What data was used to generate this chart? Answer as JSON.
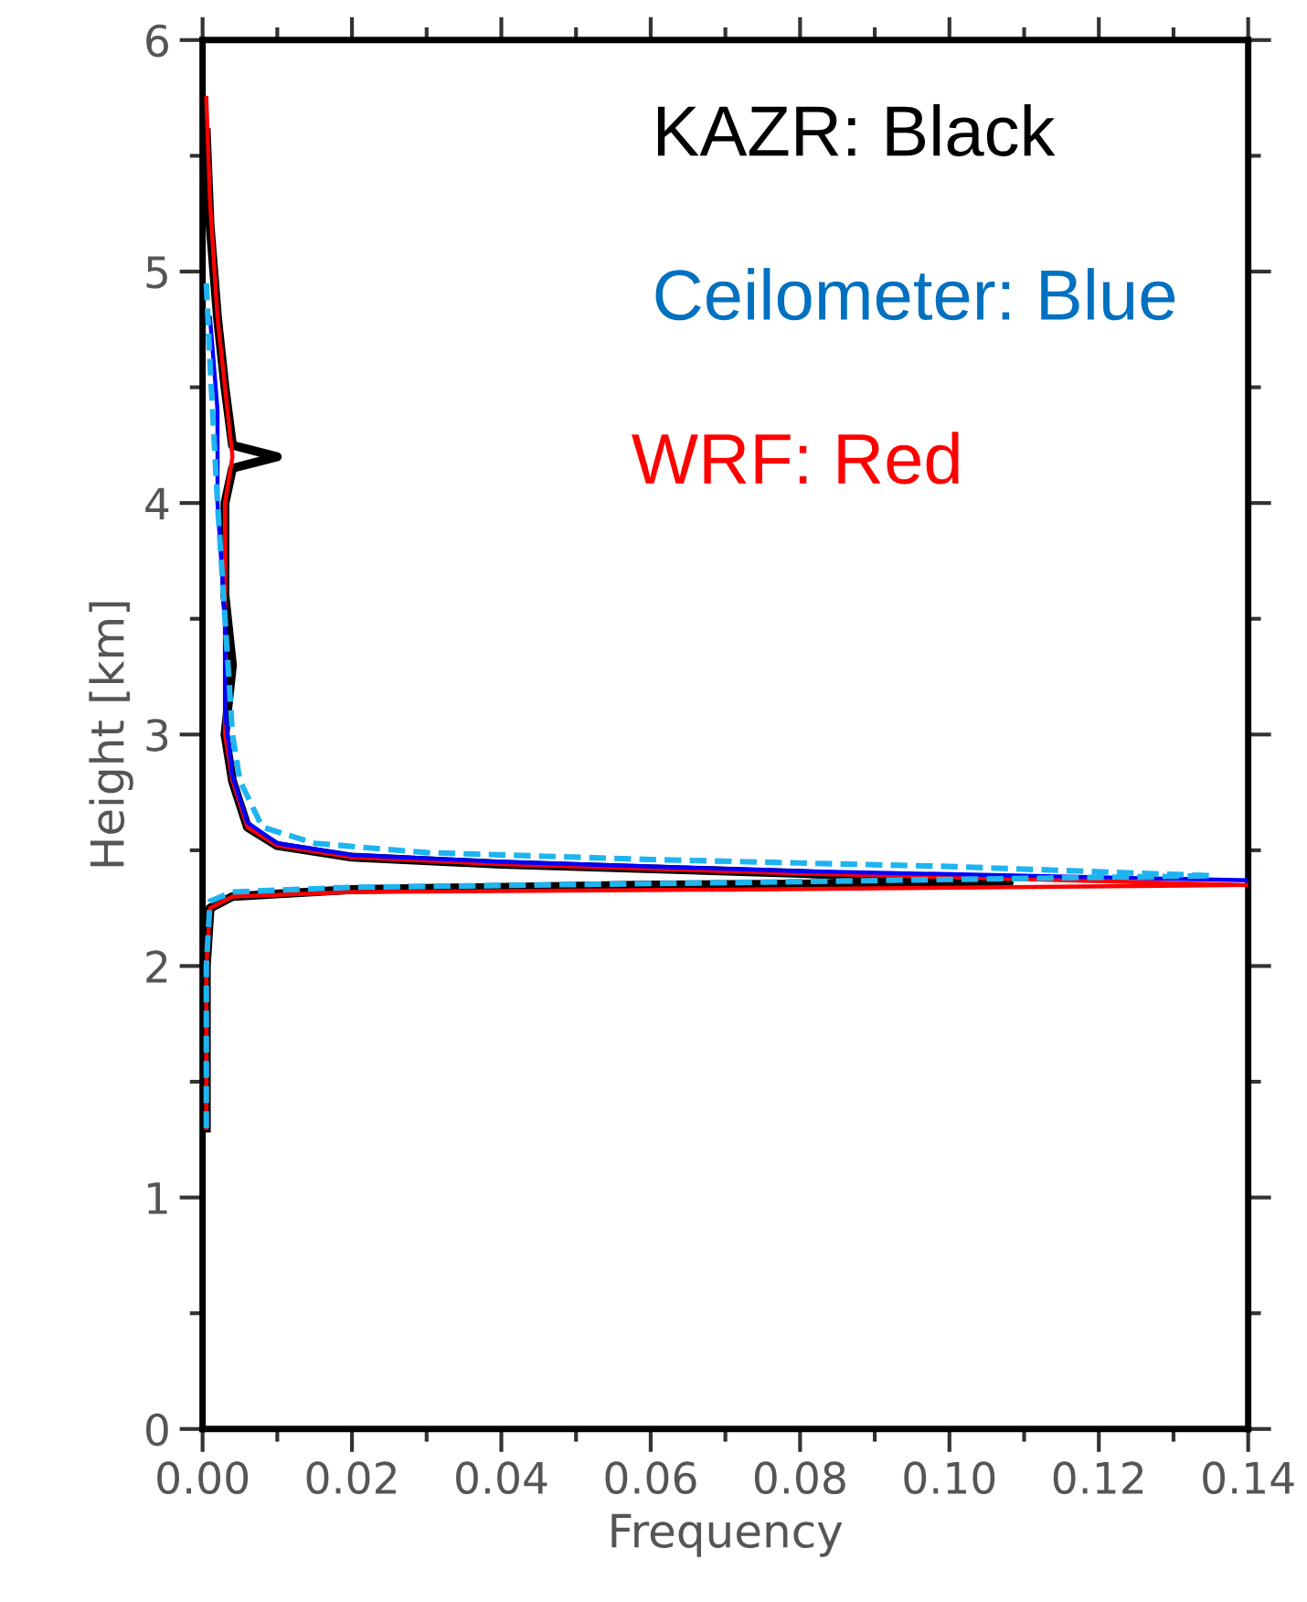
{
  "chart_data": {
    "type": "line",
    "xlabel": "Frequency",
    "ylabel": "Height [km]",
    "annotations": [
      "KAZR: Black",
      "Ceilometer: Blue",
      "WRF: Red"
    ],
    "xlim": [
      0,
      0.14
    ],
    "ylim": [
      0,
      6
    ],
    "xticks": [
      {
        "value": 0,
        "label": "0.00"
      },
      {
        "value": 0.01,
        "label": null
      },
      {
        "value": 0.02,
        "label": "0.02"
      },
      {
        "value": 0.03,
        "label": null
      },
      {
        "value": 0.04,
        "label": "0.04"
      },
      {
        "value": 0.05,
        "label": null
      },
      {
        "value": 0.06,
        "label": "0.06"
      },
      {
        "value": 0.07,
        "label": null
      },
      {
        "value": 0.08,
        "label": "0.08"
      },
      {
        "value": 0.09,
        "label": null
      },
      {
        "value": 0.1,
        "label": "0.10"
      },
      {
        "value": 0.11,
        "label": null
      },
      {
        "value": 0.12,
        "label": "0.12"
      },
      {
        "value": 0.13,
        "label": null
      },
      {
        "value": 0.14,
        "label": "0.14"
      }
    ],
    "yticks": [
      0,
      {
        "value": 0.5,
        "label": null
      },
      1,
      {
        "value": 1.5,
        "label": null
      },
      2,
      {
        "value": 2.5,
        "label": null
      },
      3,
      {
        "value": 3.5,
        "label": null
      },
      4,
      {
        "value": 4.5,
        "label": null
      },
      5,
      {
        "value": 5.5,
        "label": null
      },
      6
    ],
    "grid": false,
    "legend": false,
    "marker": "none",
    "series": [
      {
        "color": "#000000",
        "line_style": "solid",
        "x": [
          0.0005,
          0.0005,
          0.001,
          0.004,
          0.02,
          0.06,
          0.108,
          0.08,
          0.04,
          0.02,
          0.01,
          0.006,
          0.004,
          0.003,
          0.004,
          0.003,
          0.003,
          0.004,
          0.01,
          0.004,
          0.003,
          0.002,
          0.001,
          0.0005
        ],
        "values": [
          1.3,
          2.0,
          2.25,
          2.3,
          2.33,
          2.35,
          2.36,
          2.4,
          2.44,
          2.47,
          2.52,
          2.6,
          2.8,
          3.0,
          3.3,
          3.6,
          4.0,
          4.15,
          4.2,
          4.25,
          4.5,
          4.8,
          5.2,
          5.6
        ]
      },
      {
        "color": "#ff0000",
        "line_style": "solid",
        "x": [
          0.0005,
          0.0005,
          0.001,
          0.004,
          0.02,
          0.07,
          0.14,
          0.08,
          0.04,
          0.02,
          0.01,
          0.006,
          0.004,
          0.003,
          0.003,
          0.003,
          0.004,
          0.003,
          0.002,
          0.001,
          0.0005
        ],
        "values": [
          1.3,
          2.0,
          2.25,
          2.3,
          2.32,
          2.33,
          2.35,
          2.4,
          2.44,
          2.47,
          2.52,
          2.6,
          2.8,
          3.0,
          3.5,
          4.0,
          4.2,
          4.5,
          4.8,
          5.3,
          5.75
        ]
      },
      {
        "color": "#0000ff",
        "line_style": "solid",
        "x": [
          0.14,
          0.08,
          0.04,
          0.02,
          0.01,
          0.006,
          0.004,
          0.003,
          0.003,
          0.002,
          0.002,
          0.001
        ],
        "values": [
          2.37,
          2.41,
          2.45,
          2.48,
          2.53,
          2.62,
          2.82,
          3.1,
          3.5,
          4.0,
          4.4,
          4.8
        ]
      },
      {
        "color": "#1eb4f0",
        "line_style": "dashed",
        "x": [
          0.0005,
          0.0005,
          0.001,
          0.004,
          0.02,
          0.07,
          0.135,
          0.1,
          0.06,
          0.03,
          0.015,
          0.008,
          0.005,
          0.004,
          0.003,
          0.002,
          0.001,
          0.0005
        ],
        "values": [
          1.3,
          2.0,
          2.28,
          2.32,
          2.34,
          2.36,
          2.39,
          2.43,
          2.46,
          2.49,
          2.53,
          2.6,
          2.8,
          3.0,
          3.5,
          4.0,
          4.6,
          4.95
        ]
      }
    ]
  }
}
